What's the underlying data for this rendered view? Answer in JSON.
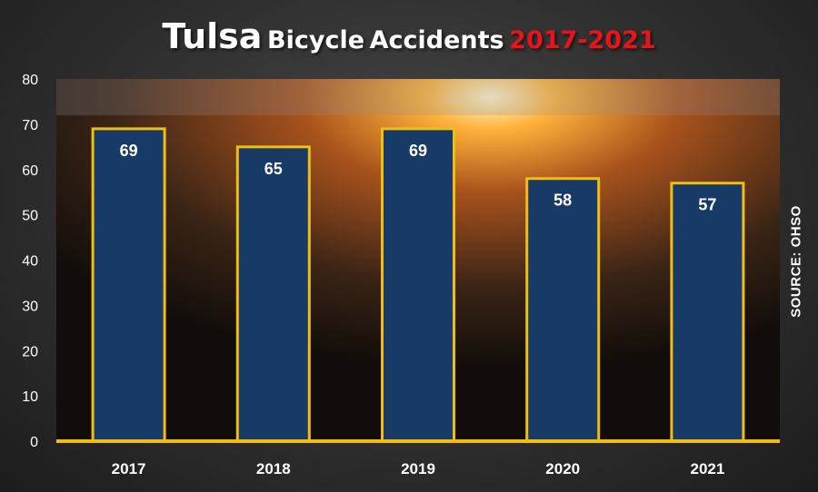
{
  "title": {
    "part1": "Tulsa",
    "part2": "Bicycle",
    "part3": "Accidents",
    "part4": "2017-2021"
  },
  "source": "SOURCE: OHSO",
  "colors": {
    "bar_fill": "#173a66",
    "bar_border": "#f2bd13",
    "axis_line": "#f2bd13",
    "title_accent": "#e8141b",
    "text": "#ffffff"
  },
  "chart_data": {
    "type": "bar",
    "title": "Tulsa Bicycle Accidents 2017-2021",
    "categories": [
      "2017",
      "2018",
      "2019",
      "2020",
      "2021"
    ],
    "values": [
      69,
      65,
      69,
      58,
      57
    ],
    "data_labels": [
      "69",
      "65",
      "69",
      "58",
      "57"
    ],
    "ylim": [
      0,
      80
    ],
    "yticks": [
      0,
      10,
      20,
      30,
      40,
      50,
      60,
      70,
      80
    ],
    "grid": false,
    "xlabel": "",
    "ylabel": ""
  }
}
